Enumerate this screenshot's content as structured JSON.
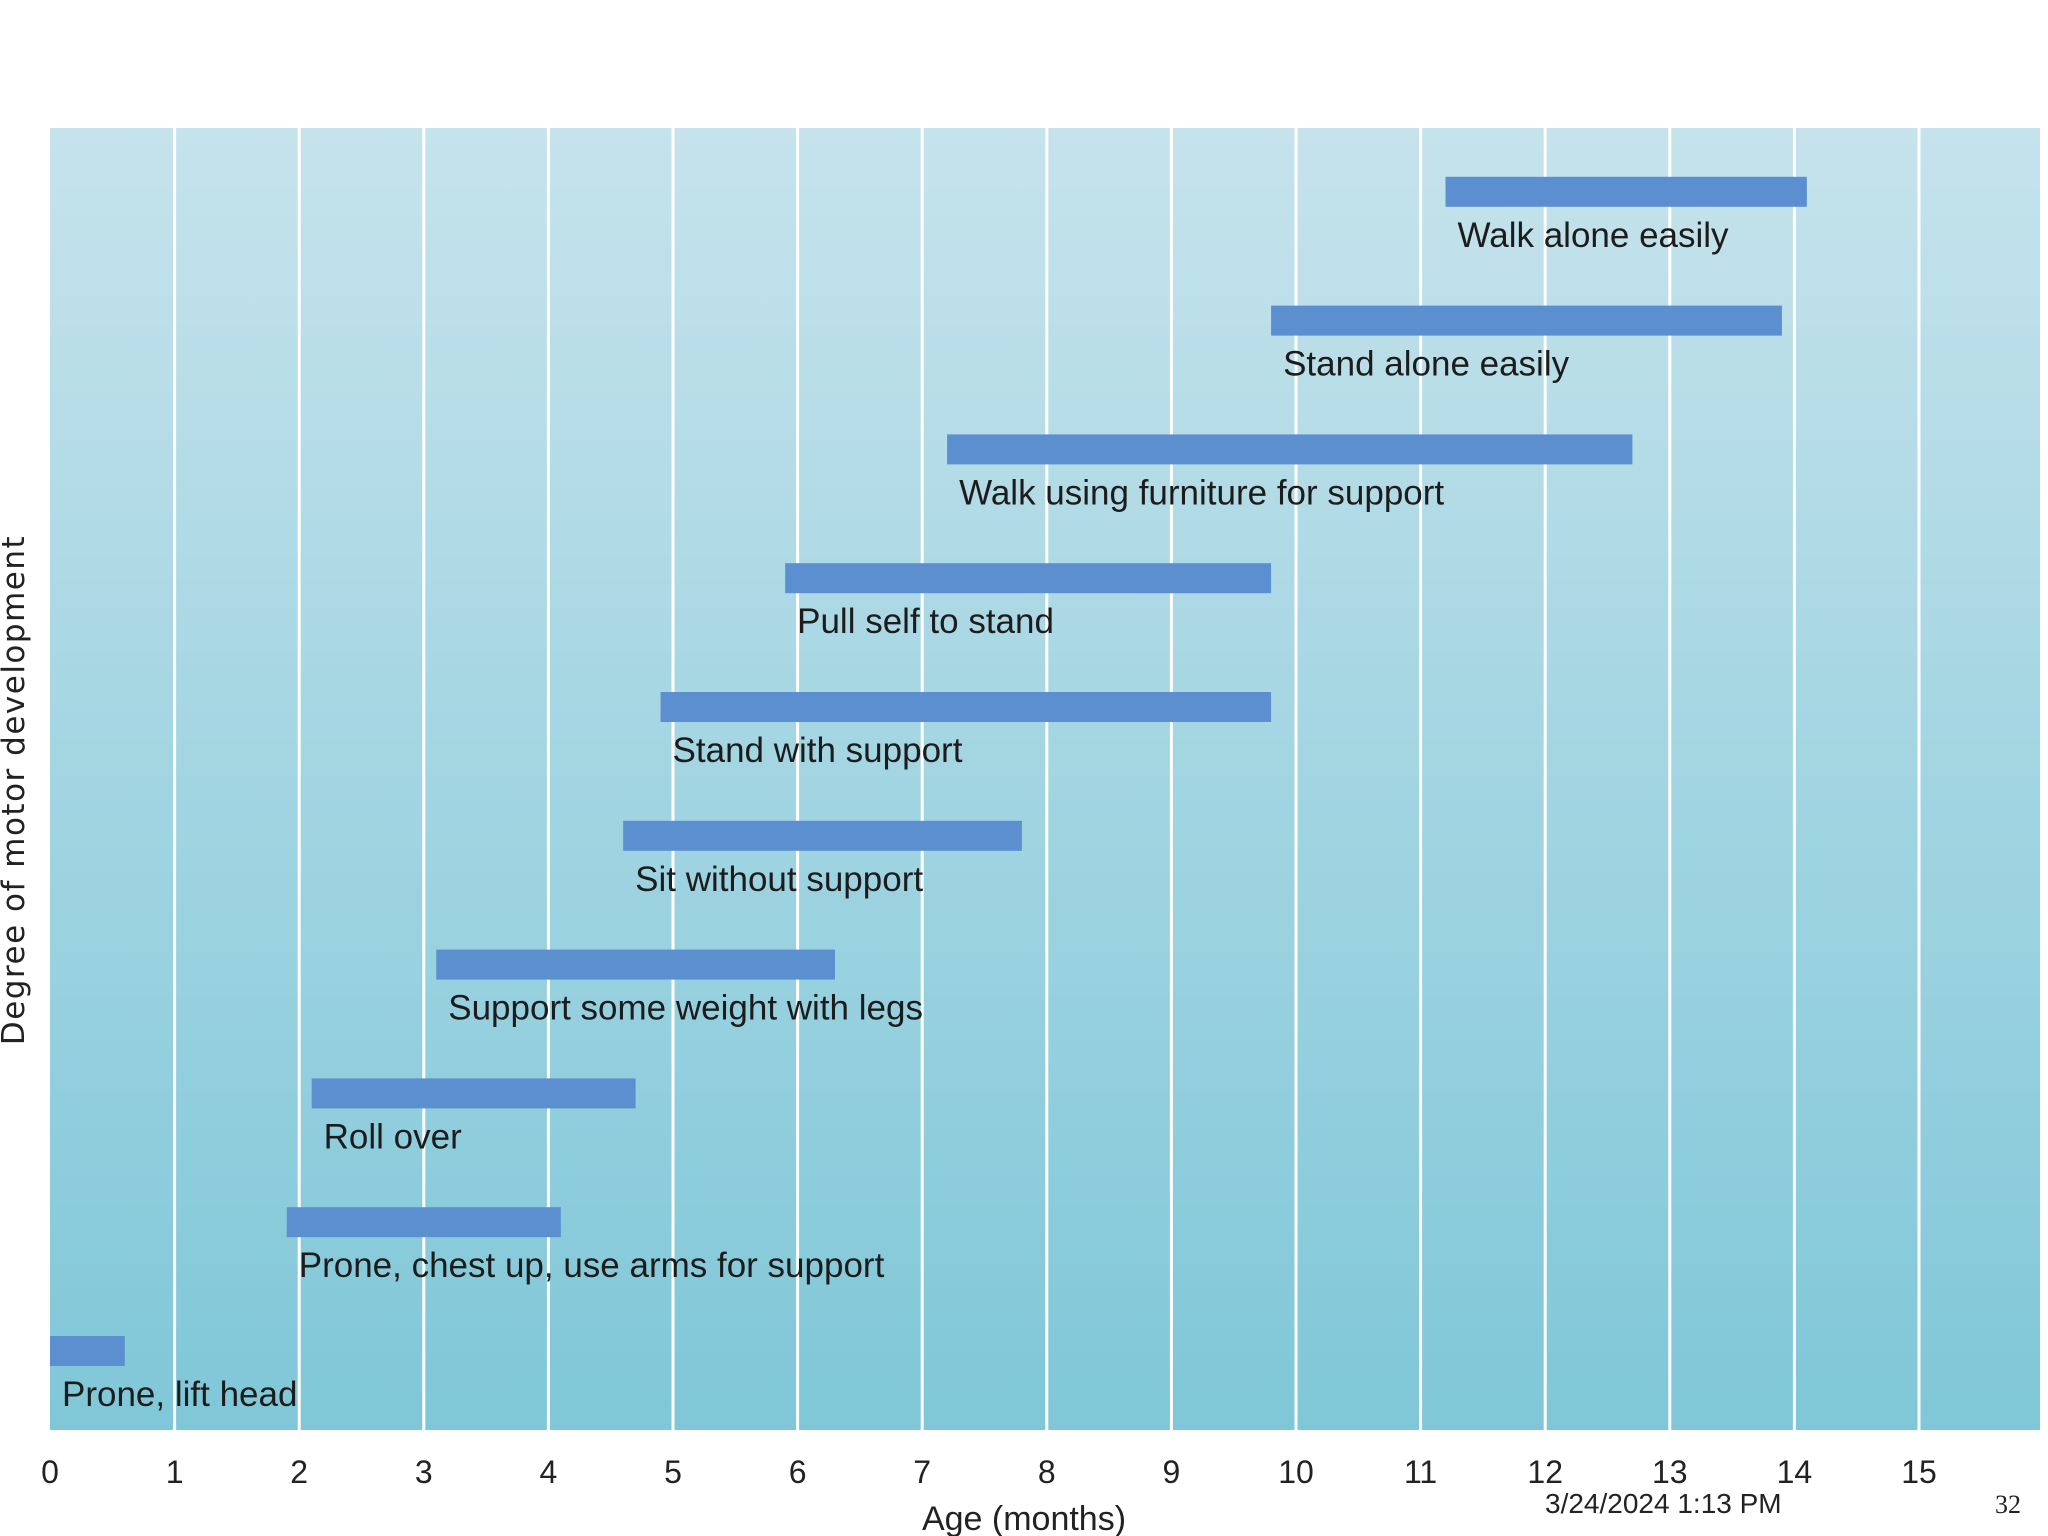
{
  "chart_data": {
    "type": "bar",
    "orientation": "horizontal-range",
    "xlabel": "Age (months)",
    "ylabel": "Degree of motor development",
    "xlim": [
      0,
      16
    ],
    "xticks": [
      0,
      1,
      2,
      3,
      4,
      5,
      6,
      7,
      8,
      9,
      10,
      11,
      12,
      13,
      14,
      15
    ],
    "grid": true,
    "series": [
      {
        "label": "Prone, lift head",
        "start": 0,
        "end": 0.6
      },
      {
        "label": "Prone, chest up, use arms for support",
        "start": 1.9,
        "end": 4.1
      },
      {
        "label": "Roll over",
        "start": 2.1,
        "end": 4.7
      },
      {
        "label": "Support some weight with legs",
        "start": 3.1,
        "end": 6.3
      },
      {
        "label": "Sit without support",
        "start": 4.6,
        "end": 7.8
      },
      {
        "label": "Stand with support",
        "start": 4.9,
        "end": 9.8
      },
      {
        "label": "Pull self to stand",
        "start": 5.9,
        "end": 9.8
      },
      {
        "label": "Walk using furniture for support",
        "start": 7.2,
        "end": 12.7
      },
      {
        "label": "Stand alone easily",
        "start": 9.8,
        "end": 13.9
      },
      {
        "label": "Walk alone easily",
        "start": 11.2,
        "end": 14.1
      }
    ],
    "colors": {
      "bar": "#5b8fd0",
      "background_top": "#c6e3ec",
      "background_bottom": "#7fc7d8",
      "grid": "#ffffff"
    }
  },
  "footer": {
    "datetime": "3/24/2024 1:13 PM",
    "page_number": "32"
  }
}
